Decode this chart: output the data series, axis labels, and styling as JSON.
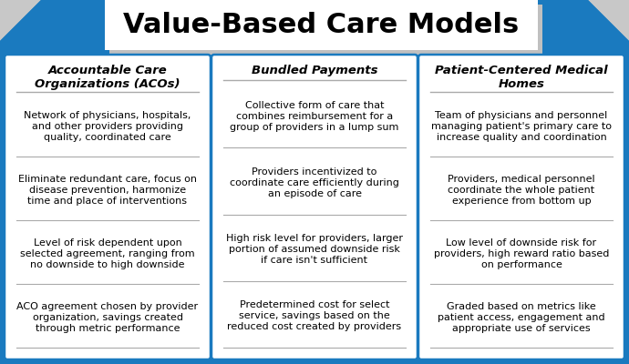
{
  "title": "Value-Based Care Models",
  "background_color": "#1a7abf",
  "title_box_color": "#ffffff",
  "title_shadow_color": "#c0c0c0",
  "card_bg_color": "#ffffff",
  "card_border_color": "#1a7abf",
  "divider_color": "#aaaaaa",
  "title_fontsize": 22,
  "header_fontsize": 9.5,
  "body_fontsize": 8.0,
  "columns": [
    {
      "header": "Accountable Care\nOrganizations (ACOs)",
      "items": [
        "Network of physicians, hospitals,\nand other providers providing\nquality, coordinated care",
        "Eliminate redundant care, focus on\ndisease prevention, harmonize\ntime and place of interventions",
        "Level of risk dependent upon\nselected agreement, ranging from\nno downside to high downside",
        "ACO agreement chosen by provider\norganization, savings created\nthrough metric performance"
      ]
    },
    {
      "header": "Bundled Payments",
      "items": [
        "Collective form of care that\ncombines reimbursement for a\ngroup of providers in a lump sum",
        "Providers incentivized to\ncoordinate care efficiently during\nan episode of care",
        "High risk level for providers, larger\nportion of assumed downside risk\nif care isn't sufficient",
        "Predetermined cost for select\nservice, savings based on the\nreduced cost created by providers"
      ]
    },
    {
      "header": "Patient-Centered Medical\nHomes",
      "items": [
        "Team of physicians and personnel\nmanaging patient's primary care to\nincrease quality and coordination",
        "Providers, medical personnel\ncoordinate the whole patient\nexperience from bottom up",
        "Low level of downside risk for\nproviders, high reward ratio based\non performance",
        "Graded based on metrics like\npatient access, engagement and\nappropriate use of services"
      ]
    }
  ]
}
